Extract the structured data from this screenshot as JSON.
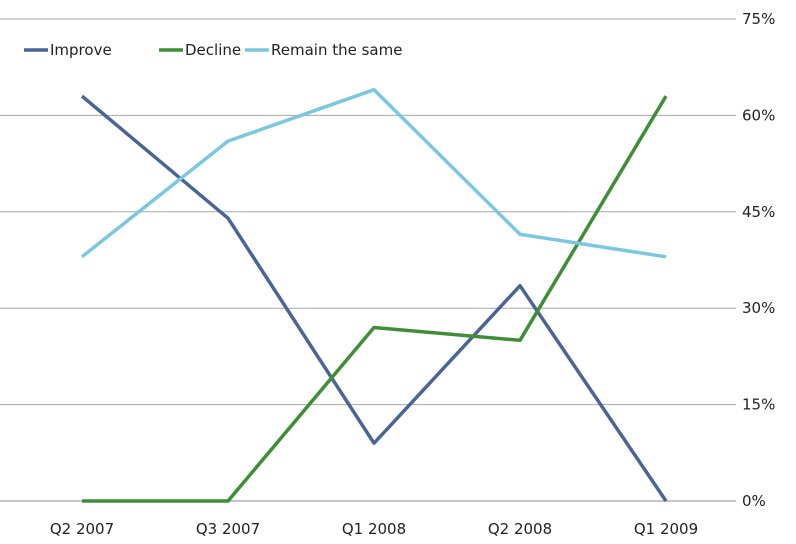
{
  "chart_data": {
    "type": "line",
    "title": "",
    "xlabel": "",
    "ylabel": "",
    "categories": [
      "Q2 2007",
      "Q3 2007",
      "Q1 2008",
      "Q2 2008",
      "Q1 2009"
    ],
    "ylim": [
      0,
      75
    ],
    "yticks": [
      "0%",
      "15%",
      "30%",
      "45%",
      "60%",
      "75%"
    ],
    "grid": true,
    "y_axis_position": "right",
    "legend_position": "top-left",
    "series": [
      {
        "name": "Improve",
        "color": "#4a6595",
        "values": [
          63,
          44,
          9,
          33.5,
          0
        ]
      },
      {
        "name": "Decline",
        "color": "#3e8e36",
        "values": [
          0,
          0,
          27,
          25,
          63
        ]
      },
      {
        "name": "Remain the same",
        "color": "#79c8e0",
        "values": [
          38,
          56,
          64,
          41.5,
          38
        ]
      }
    ]
  }
}
